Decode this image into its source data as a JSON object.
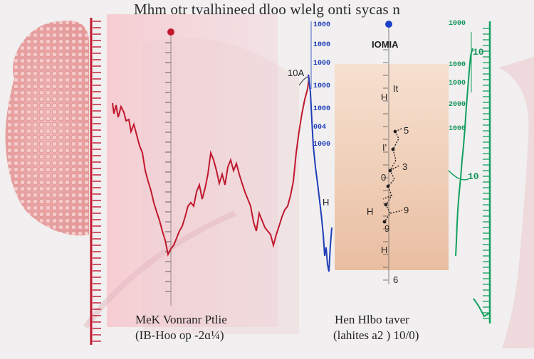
{
  "title": "Mhm otr tvalhineed dloo wlelg onti sycas n",
  "left_panel": {
    "caption_line1": "MeK  Vonranr Ptlie",
    "caption_line2": "(IB-Hoo op -2ɑ¼)",
    "labels": [
      "10A",
      "H"
    ]
  },
  "blue_scale": {
    "ticks": [
      "1000",
      "1000",
      "1000",
      "1000",
      "1000",
      "1000",
      "004"
    ]
  },
  "center_panel": {
    "header": "IOMIA",
    "labels": [
      "It",
      "H",
      "5",
      "I'",
      "3",
      "0",
      "H",
      "9",
      "9",
      "H",
      "6"
    ],
    "caption_line1": "Hen Hlbo taver",
    "caption_line2": "(lahites a2 ) 10/0)"
  },
  "green_scale": {
    "ticks": [
      "1000",
      "10",
      "1000",
      "1000",
      "2000",
      "1000",
      "10"
    ]
  },
  "colors": {
    "red_trace": "#c0182d",
    "blue_trace": "#1f3fb8",
    "green_trace": "#12a060",
    "red_marker": "#c0182d",
    "blue_marker": "#1e40c8"
  }
}
